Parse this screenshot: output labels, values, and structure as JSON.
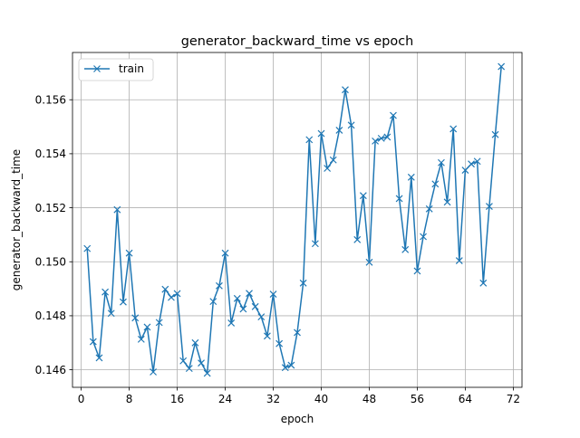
{
  "chart_data": {
    "type": "line",
    "title": "generator_backward_time vs epoch",
    "xlabel": "epoch",
    "ylabel": "generator_backward_time",
    "xlim": [
      -1.45,
      73.45
    ],
    "ylim": [
      0.14535,
      0.15775
    ],
    "xticks": [
      0,
      8,
      16,
      24,
      32,
      40,
      48,
      56,
      64,
      72
    ],
    "yticks": [
      0.146,
      0.148,
      0.15,
      0.152,
      0.154,
      0.156
    ],
    "xtick_labels": [
      "0",
      "8",
      "16",
      "24",
      "32",
      "40",
      "48",
      "56",
      "64",
      "72"
    ],
    "ytick_labels": [
      "0.146",
      "0.148",
      "0.150",
      "0.152",
      "0.154",
      "0.156"
    ],
    "grid": true,
    "legend_position": "top-left",
    "series": [
      {
        "name": "train",
        "color": "#1f77b4",
        "marker": "x",
        "x": [
          1,
          2,
          3,
          4,
          5,
          6,
          7,
          8,
          9,
          10,
          11,
          12,
          13,
          14,
          15,
          16,
          17,
          18,
          19,
          20,
          21,
          22,
          23,
          24,
          25,
          26,
          27,
          28,
          29,
          30,
          31,
          32,
          33,
          34,
          35,
          36,
          37,
          38,
          39,
          40,
          41,
          42,
          43,
          44,
          45,
          46,
          47,
          48,
          49,
          50,
          51,
          52,
          53,
          54,
          55,
          56,
          57,
          58,
          59,
          60,
          61,
          62,
          63,
          64,
          65,
          66,
          67,
          68,
          69,
          70
        ],
        "y": [
          0.15049,
          0.14704,
          0.14644,
          0.14888,
          0.14809,
          0.15193,
          0.14851,
          0.15032,
          0.14792,
          0.14713,
          0.14758,
          0.14592,
          0.14775,
          0.14898,
          0.14868,
          0.14882,
          0.14633,
          0.14605,
          0.147,
          0.14625,
          0.14587,
          0.14853,
          0.14911,
          0.15032,
          0.14773,
          0.14864,
          0.14825,
          0.14883,
          0.14834,
          0.14796,
          0.14725,
          0.1488,
          0.14697,
          0.14608,
          0.14617,
          0.14738,
          0.14921,
          0.15452,
          0.15067,
          0.15475,
          0.15346,
          0.15377,
          0.15487,
          0.15637,
          0.15506,
          0.15082,
          0.15245,
          0.14998,
          0.15447,
          0.15457,
          0.15462,
          0.15542,
          0.15234,
          0.15045,
          0.15313,
          0.14966,
          0.15093,
          0.15196,
          0.15288,
          0.15367,
          0.15221,
          0.15492,
          0.15004,
          0.15339,
          0.15362,
          0.15372,
          0.14921,
          0.15205,
          0.15471,
          0.15723
        ]
      }
    ]
  }
}
